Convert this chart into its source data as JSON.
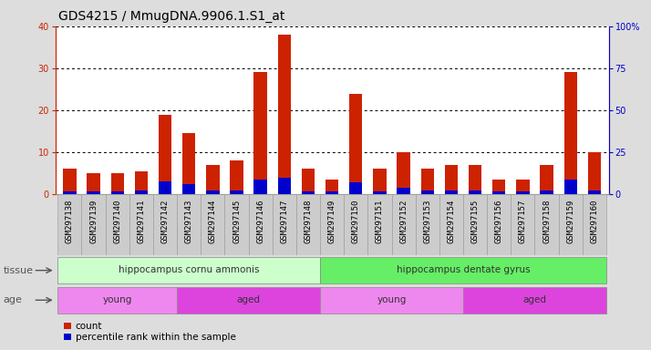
{
  "title": "GDS4215 / MmugDNA.9906.1.S1_at",
  "samples": [
    "GSM297138",
    "GSM297139",
    "GSM297140",
    "GSM297141",
    "GSM297142",
    "GSM297143",
    "GSM297144",
    "GSM297145",
    "GSM297146",
    "GSM297147",
    "GSM297148",
    "GSM297149",
    "GSM297150",
    "GSM297151",
    "GSM297152",
    "GSM297153",
    "GSM297154",
    "GSM297155",
    "GSM297156",
    "GSM297157",
    "GSM297158",
    "GSM297159",
    "GSM297160"
  ],
  "count_values": [
    6,
    5,
    5,
    5.5,
    19,
    14.5,
    7,
    8,
    29,
    38,
    6,
    3.5,
    24,
    6,
    10,
    6,
    7,
    7,
    3.5,
    3.5,
    7,
    29,
    10
  ],
  "percentile_values": [
    1.5,
    1.5,
    1.5,
    2,
    7.5,
    6,
    2,
    2,
    9,
    10,
    1.5,
    1.5,
    7,
    1.5,
    4,
    2,
    2.5,
    2.5,
    1.5,
    1.5,
    2,
    9,
    2.5
  ],
  "count_color": "#cc2200",
  "percentile_color": "#0000cc",
  "ylim_left": [
    0,
    40
  ],
  "ylim_right": [
    0,
    100
  ],
  "yticks_left": [
    0,
    10,
    20,
    30,
    40
  ],
  "yticks_right": [
    0,
    25,
    50,
    75,
    100
  ],
  "ytick_labels_right": [
    "0",
    "25",
    "50",
    "75",
    "100%"
  ],
  "tissue_groups": [
    {
      "label": "hippocampus cornu ammonis",
      "start": 0,
      "end": 11,
      "color": "#ccffcc"
    },
    {
      "label": "hippocampus dentate gyrus",
      "start": 11,
      "end": 23,
      "color": "#66ee66"
    }
  ],
  "age_groups": [
    {
      "label": "young",
      "start": 0,
      "end": 5,
      "color": "#ee88ee"
    },
    {
      "label": "aged",
      "start": 5,
      "end": 11,
      "color": "#dd44dd"
    },
    {
      "label": "young",
      "start": 11,
      "end": 17,
      "color": "#ee88ee"
    },
    {
      "label": "aged",
      "start": 17,
      "end": 23,
      "color": "#dd44dd"
    }
  ],
  "tissue_label": "tissue",
  "age_label": "age",
  "legend_count": "count",
  "legend_percentile": "percentile rank within the sample",
  "bar_width": 0.55,
  "background_color": "#dddddd",
  "plot_bg_color": "#ffffff",
  "tick_bg_color": "#cccccc",
  "title_fontsize": 10,
  "tick_fontsize": 6.5,
  "label_fontsize": 8
}
